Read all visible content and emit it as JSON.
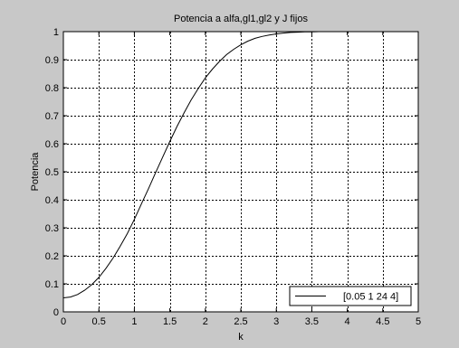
{
  "chart_data": {
    "type": "line",
    "title": "Potencia a alfa,gl1,gl2 y J fijos",
    "xlabel": "k",
    "ylabel": "Potencia",
    "xlim": [
      0,
      5
    ],
    "ylim": [
      0,
      1
    ],
    "xticks": [
      0,
      0.5,
      1,
      1.5,
      2,
      2.5,
      3,
      3.5,
      4,
      4.5,
      5
    ],
    "yticks": [
      0,
      0.1,
      0.2,
      0.3,
      0.4,
      0.5,
      0.6,
      0.7,
      0.8,
      0.9,
      1
    ],
    "xtick_labels": [
      "0",
      "0.5",
      "1",
      "1.5",
      "2",
      "2.5",
      "3",
      "3.5",
      "4",
      "4.5",
      "5"
    ],
    "ytick_labels": [
      "0",
      "0.1",
      "0.2",
      "0.3",
      "0.4",
      "0.5",
      "0.6",
      "0.7",
      "0.8",
      "0.9",
      "1"
    ],
    "grid": true,
    "legend_position": "bottom-right",
    "series": [
      {
        "name": "[0.05 1 24 4]",
        "color": "#000000",
        "x": [
          0,
          0.1,
          0.2,
          0.3,
          0.4,
          0.5,
          0.6,
          0.7,
          0.8,
          0.9,
          1.0,
          1.1,
          1.2,
          1.3,
          1.4,
          1.5,
          1.6,
          1.7,
          1.8,
          1.9,
          2.0,
          2.1,
          2.2,
          2.3,
          2.4,
          2.5,
          2.6,
          2.7,
          2.8,
          2.9,
          3.0,
          3.1,
          3.2,
          3.3,
          3.4,
          3.5,
          3.6,
          3.7
        ],
        "y": [
          0.05,
          0.053,
          0.062,
          0.077,
          0.097,
          0.123,
          0.155,
          0.192,
          0.234,
          0.279,
          0.33,
          0.385,
          0.44,
          0.497,
          0.553,
          0.608,
          0.661,
          0.71,
          0.756,
          0.797,
          0.835,
          0.866,
          0.894,
          0.918,
          0.937,
          0.953,
          0.966,
          0.976,
          0.983,
          0.988,
          0.992,
          0.995,
          0.997,
          0.998,
          0.999,
          0.9995,
          1.0,
          1.0
        ]
      }
    ]
  }
}
